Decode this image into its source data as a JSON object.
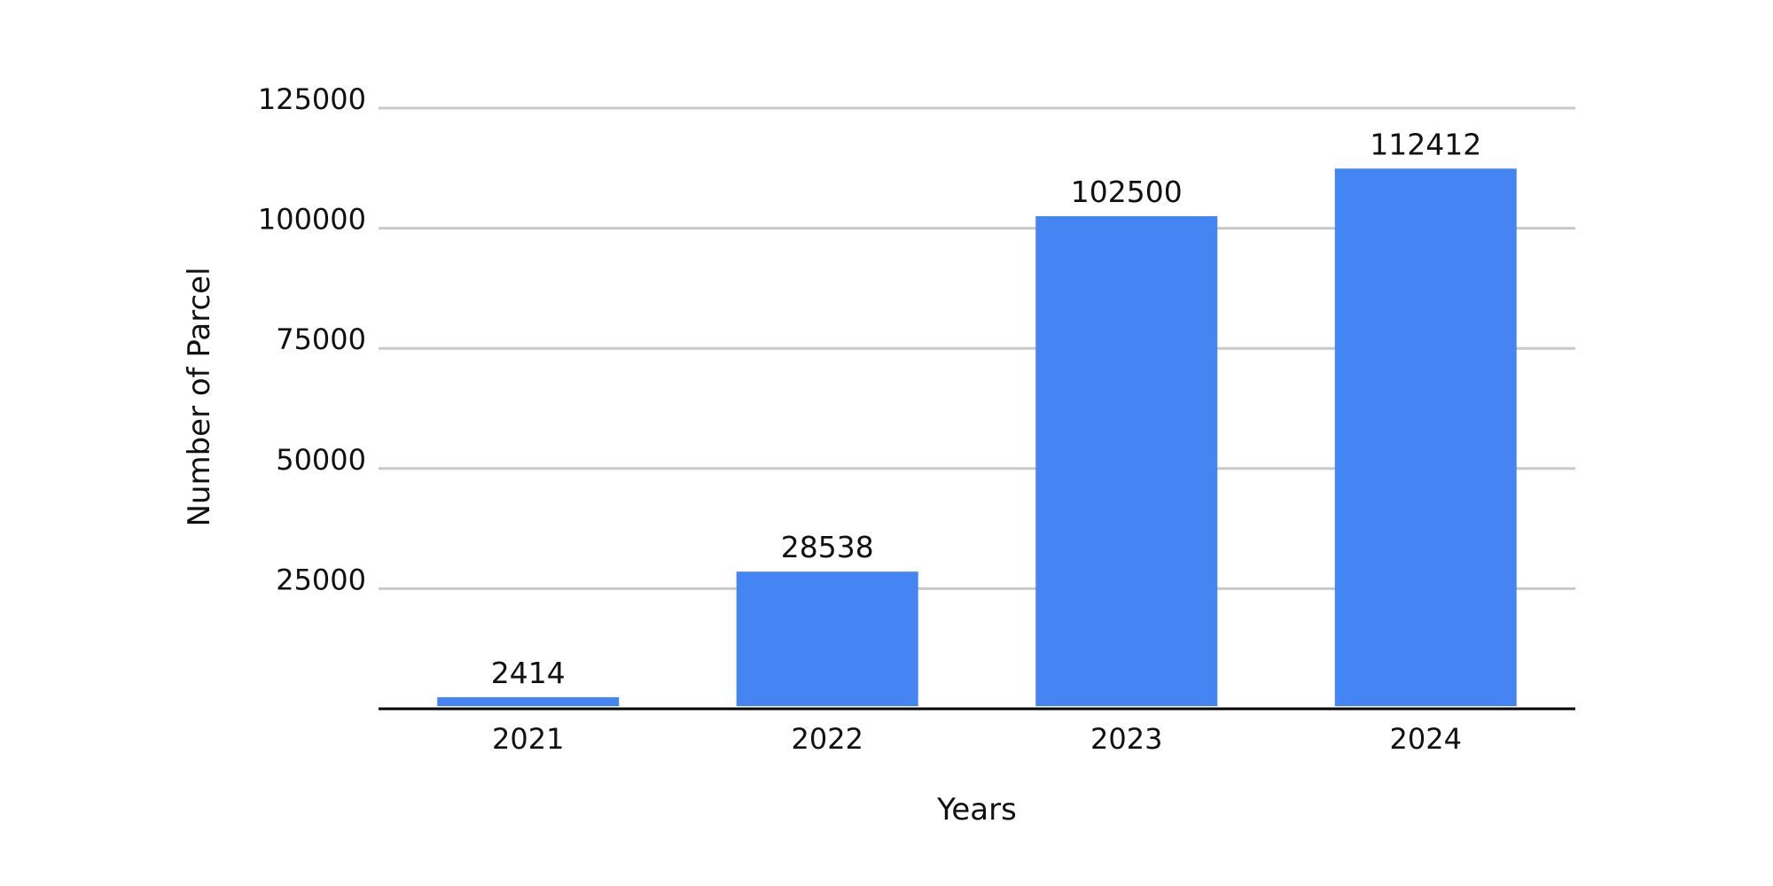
{
  "chart_data": {
    "type": "bar",
    "categories": [
      "2021",
      "2022",
      "2023",
      "2024"
    ],
    "values": [
      2414,
      28538,
      102500,
      112412
    ],
    "data_labels": [
      "2414",
      "28538",
      "102500",
      "112412"
    ],
    "xlabel": "Years",
    "ylabel": "Number of Parcel",
    "ylim": [
      0,
      125000
    ],
    "yticks": [
      {
        "value": 25000,
        "label": "25000"
      },
      {
        "value": 50000,
        "label": "50000"
      },
      {
        "value": 75000,
        "label": "75000"
      },
      {
        "value": 100000,
        "label": "100000"
      },
      {
        "value": 125000,
        "label": "125000"
      }
    ],
    "grid": true,
    "legend": "none",
    "colors": {
      "bar": "#4585F3",
      "grid": "#C9C9C9",
      "axis": "#000000",
      "text": "#111111"
    }
  }
}
